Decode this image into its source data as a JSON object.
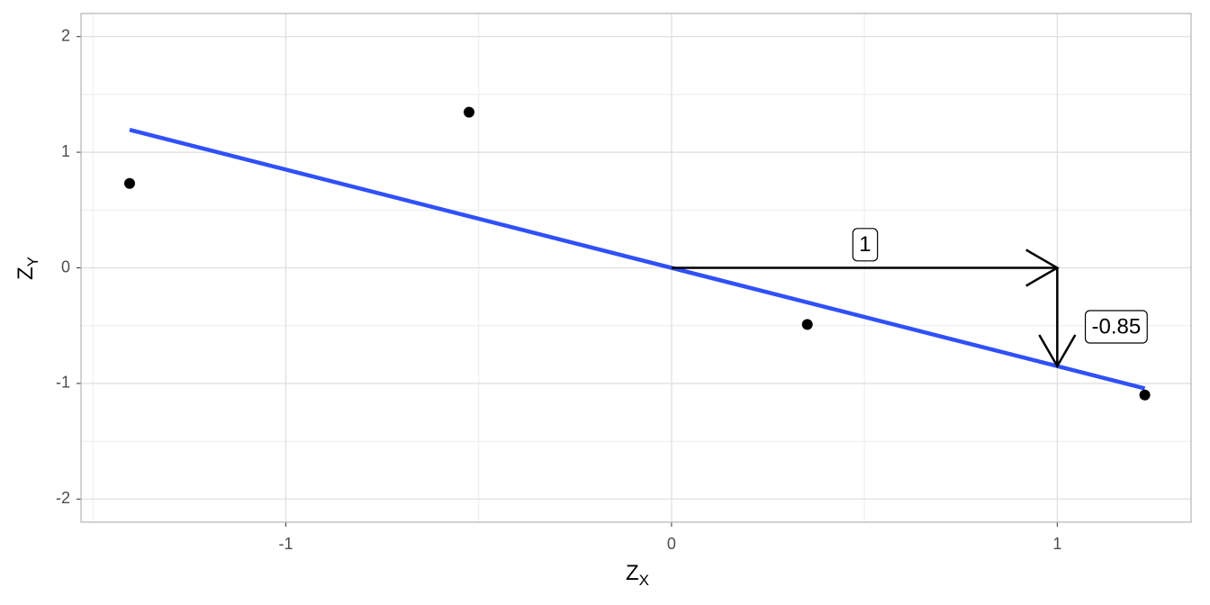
{
  "chart_data": {
    "type": "scatter",
    "x": [
      -1.405,
      -0.525,
      0.352,
      1.227
    ],
    "y": [
      0.73,
      1.346,
      -0.49,
      -1.1
    ],
    "point_color": "#000000",
    "fit": {
      "x": [
        -1.405,
        1.227
      ],
      "y": [
        1.194,
        -1.043
      ],
      "color": "#3050f8"
    },
    "arrows": [
      {
        "x": [
          0,
          1
        ],
        "y": [
          0,
          0
        ]
      },
      {
        "x": [
          1,
          1
        ],
        "y": [
          0,
          -0.85
        ]
      }
    ],
    "labels": [
      {
        "text": "1",
        "x": 0.502,
        "y": 0.2
      },
      {
        "text": "-0.85",
        "x": 1.153,
        "y": -0.51
      }
    ],
    "xlabel": "Z",
    "xlabel_sub": "X",
    "ylabel": "Z",
    "ylabel_sub": "Y",
    "xlim": [
      -1.531,
      1.347
    ],
    "ylim": [
      -2.2,
      2.2
    ],
    "xticks": [
      -1,
      0,
      1
    ],
    "yticks": [
      -2,
      -1,
      0,
      1,
      2
    ],
    "x_minor_grid": [
      -1.5,
      -0.5,
      0.5
    ],
    "y_minor_grid": [
      -1.5,
      -0.5,
      0.5,
      1.5
    ],
    "grid": true
  }
}
